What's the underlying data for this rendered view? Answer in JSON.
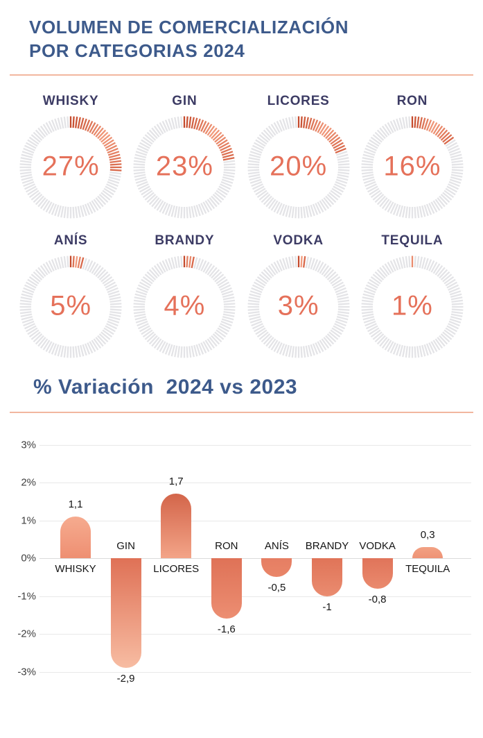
{
  "header": {
    "title_line1": "VOLUMEN DE COMERCIALIZACIÓN",
    "title_line2": "POR CATEGORIAS 2024"
  },
  "variation_section": {
    "title": "% Variación  2024 vs 2023"
  },
  "colors": {
    "title_blue": "#3D5A8B",
    "gauge_label_navy": "#3C3B64",
    "percent_salmon": "#E5715A",
    "divider_salmon": "#F0A98E",
    "gauge_tick_gray": "#E4E4E7",
    "gauge_grad_start": "#C54A2C",
    "gauge_grad_mid": "#F29B7D",
    "gauge_grad_end": "#D8684A",
    "gridline_gray": "#E8E8E8"
  },
  "chart_data": [
    {
      "type": "pie",
      "title": "VOLUMEN DE COMERCIALIZACIÓN POR CATEGORIAS 2024",
      "layout": "8 individual tick-donut gauges, 4 per row, share filled clockwise from 12 o'clock",
      "categories": [
        "WHISKY",
        "GIN",
        "LICORES",
        "RON",
        "ANÍS",
        "BRANDY",
        "VODKA",
        "TEQUILA"
      ],
      "values": [
        27,
        23,
        20,
        16,
        5,
        4,
        3,
        1
      ],
      "value_labels": [
        "27%",
        "23%",
        "20%",
        "16%",
        "5%",
        "4%",
        "3%",
        "1%"
      ]
    },
    {
      "type": "bar",
      "title": "% Variación 2024 vs 2023",
      "categories": [
        "WHISKY",
        "GIN",
        "LICORES",
        "RON",
        "ANÍS",
        "BRANDY",
        "VODKA",
        "TEQUILA"
      ],
      "values": [
        1.1,
        -2.9,
        1.7,
        -1.6,
        -0.5,
        -1,
        -0.8,
        0.3
      ],
      "value_labels": [
        "1,1",
        "-2,9",
        "1,7",
        "-1,6",
        "-0,5",
        "-1",
        "-0,8",
        "0,3"
      ],
      "y_ticks": [
        "3%",
        "2%",
        "1%",
        "0%",
        "-1%",
        "-2%",
        "-3%"
      ],
      "y_tick_values": [
        3,
        2,
        1,
        0,
        -1,
        -2,
        -3
      ],
      "ylim": [
        -3,
        3
      ],
      "grid": true,
      "legend": "none",
      "bar_gradients": [
        {
          "top": "#F6AB8F",
          "bottom": "#EE8F72"
        },
        {
          "top": "#DF7156",
          "bottom": "#F7BCA2"
        },
        {
          "top": "#D3654A",
          "bottom": "#F3A488"
        },
        {
          "top": "#DF7257",
          "bottom": "#EC8E72"
        },
        {
          "top": "#E67E63",
          "bottom": "#E98568"
        },
        {
          "top": "#E07458",
          "bottom": "#EA8C70"
        },
        {
          "top": "#E0745A",
          "bottom": "#EA8A6E"
        },
        {
          "top": "#F2A183",
          "bottom": "#EE9376"
        }
      ]
    }
  ]
}
